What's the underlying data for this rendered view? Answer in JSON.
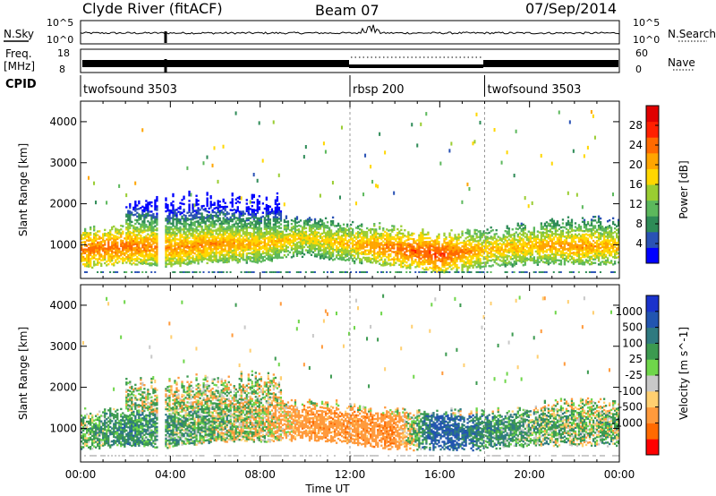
{
  "header": {
    "station": "Clyde River (fitACF)",
    "beam": "Beam 07",
    "date": "07/Sep/2014"
  },
  "panels": {
    "nsky": {
      "label": "N.Sky",
      "right_label": "N.Search",
      "ticks_left": [
        "10^5",
        "10^0"
      ],
      "ticks_right": [
        "10^5",
        "10^0"
      ]
    },
    "freq": {
      "label_line1": "Freq.",
      "label_line2": "[MHz]",
      "right_label": "Nave",
      "ticks_left": [
        "18",
        "8"
      ],
      "ticks_right": [
        "60",
        "0"
      ]
    },
    "cpid": {
      "label": "CPID",
      "segments": [
        {
          "name": "twofsound 3503",
          "start_hour": 0
        },
        {
          "name": "rbsp 200",
          "start_hour": 12
        },
        {
          "name": "twofsound 3503",
          "start_hour": 18
        }
      ]
    }
  },
  "colors": {
    "power": [
      "#0000ff",
      "#2a52b5",
      "#2e8b57",
      "#5cb85c",
      "#9acd32",
      "#ffd700",
      "#ffa500",
      "#ff6a00",
      "#ff2000",
      "#e00000"
    ],
    "velocity": [
      "#ff0000",
      "#ff6a00",
      "#ff9a3c",
      "#ffcf70",
      "#c8c8c8",
      "#6fd64a",
      "#3c9a50",
      "#2f7a80",
      "#2255b0",
      "#1a33cc"
    ]
  },
  "chart_data": [
    {
      "type": "heatmap",
      "title": "Power",
      "xlabel": "Time UT",
      "ylabel": "Slant Range [km]",
      "xlim": [
        0,
        24
      ],
      "ylim": [
        180,
        4500
      ],
      "xticks": [
        "00:00",
        "04:00",
        "08:00",
        "12:00",
        "16:00",
        "20:00",
        "00:00"
      ],
      "yticks": [
        1000,
        2000,
        3000,
        4000
      ],
      "colorbar": {
        "label": "Power [dB]",
        "range": [
          0,
          32
        ],
        "ticks": [
          4,
          8,
          12,
          16,
          20,
          24,
          28
        ]
      },
      "main_band": [
        {
          "hour": 0.0,
          "range_km": 850,
          "power_db": 26
        },
        {
          "hour": 2.0,
          "range_km": 950,
          "power_db": 26
        },
        {
          "hour": 4.0,
          "range_km": 900,
          "power_db": 24
        },
        {
          "hour": 6.0,
          "range_km": 1000,
          "power_db": 24
        },
        {
          "hour": 8.0,
          "range_km": 1000,
          "power_db": 22
        },
        {
          "hour": 10.0,
          "range_km": 1150,
          "power_db": 20
        },
        {
          "hour": 12.0,
          "range_km": 1000,
          "power_db": 22
        },
        {
          "hour": 14.0,
          "range_km": 900,
          "power_db": 26
        },
        {
          "hour": 16.0,
          "range_km": 750,
          "power_db": 28
        },
        {
          "hour": 18.0,
          "range_km": 850,
          "power_db": 22
        },
        {
          "hour": 20.0,
          "range_km": 950,
          "power_db": 22
        },
        {
          "hour": 22.0,
          "range_km": 950,
          "power_db": 24
        },
        {
          "hour": 24.0,
          "range_km": 950,
          "power_db": 22
        }
      ]
    },
    {
      "type": "heatmap",
      "title": "Velocity",
      "xlabel": "Time UT",
      "ylabel": "Slant Range [km]",
      "xlim": [
        0,
        24
      ],
      "ylim": [
        180,
        4500
      ],
      "xticks": [
        "00:00",
        "04:00",
        "08:00",
        "12:00",
        "16:00",
        "20:00",
        "00:00"
      ],
      "yticks": [
        1000,
        2000,
        3000,
        4000
      ],
      "colorbar": {
        "label": "Velocity [m s^-1]",
        "ticks": [
          1000,
          500,
          100,
          25,
          -25,
          -100,
          -500,
          -1000
        ]
      },
      "main_band": [
        {
          "hour": 0.0,
          "range_km": 900,
          "velocity_ms": 100
        },
        {
          "hour": 2.0,
          "range_km": 1000,
          "velocity_ms": 300
        },
        {
          "hour": 4.0,
          "range_km": 950,
          "velocity_ms": 200
        },
        {
          "hour": 6.0,
          "range_km": 1100,
          "velocity_ms": 100
        },
        {
          "hour": 8.0,
          "range_km": 1100,
          "velocity_ms": 0
        },
        {
          "hour": 10.0,
          "range_km": 1150,
          "velocity_ms": -300
        },
        {
          "hour": 12.0,
          "range_km": 1050,
          "velocity_ms": -300
        },
        {
          "hour": 14.0,
          "range_km": 900,
          "velocity_ms": -400
        },
        {
          "hour": 16.0,
          "range_km": 900,
          "velocity_ms": 700
        },
        {
          "hour": 18.0,
          "range_km": 900,
          "velocity_ms": 300
        },
        {
          "hour": 20.0,
          "range_km": 1000,
          "velocity_ms": 150
        },
        {
          "hour": 22.0,
          "range_km": 1000,
          "velocity_ms": 100
        },
        {
          "hour": 24.0,
          "range_km": 1000,
          "velocity_ms": 100
        }
      ]
    }
  ]
}
